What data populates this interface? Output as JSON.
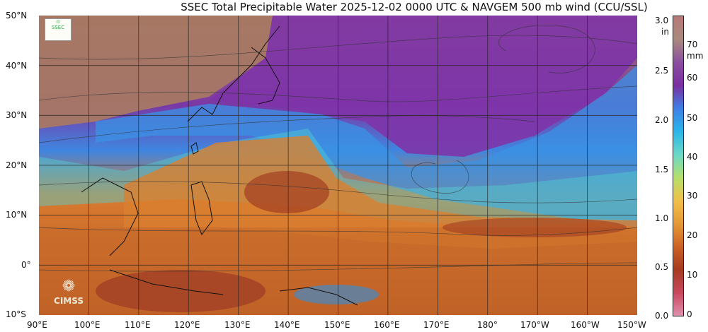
{
  "title": "SSEC Total Precipitable Water  2025-12-02 0000 UTC & NAVGEM 500 mb wind (CCU/SSL)",
  "map": {
    "lat_labels": [
      "50°N",
      "40°N",
      "30°N",
      "20°N",
      "10°N",
      "0°",
      "10°S"
    ],
    "lon_labels": [
      "90°E",
      "100°E",
      "110°E",
      "120°E",
      "130°E",
      "140°E",
      "150°E",
      "160°E",
      "170°E",
      "180°",
      "170°W",
      "160°W",
      "150°W"
    ],
    "extent": {
      "lon_min": 90,
      "lon_max": 210,
      "lat_min": -10,
      "lat_max": 50
    }
  },
  "colorbar": {
    "unit_in": "in",
    "unit_mm": "mm",
    "in_ticks": [
      "3.0",
      "2.5",
      "2.0",
      "1.5",
      "1.0",
      "0.5",
      "0.0"
    ],
    "mm_ticks": [
      "70",
      "60",
      "50",
      "40",
      "30",
      "20",
      "10",
      "0"
    ],
    "colors": [
      "#b7787a",
      "#a98a7d",
      "#8b4fa0",
      "#7a2fa0",
      "#3f7fe6",
      "#29b6e8",
      "#6bd8c8",
      "#b5e06b",
      "#f0c04a",
      "#e59a35",
      "#cc6224",
      "#a63b20",
      "#c8485e",
      "#e18fb0"
    ]
  },
  "logos": {
    "cimss": "CIMSS"
  }
}
